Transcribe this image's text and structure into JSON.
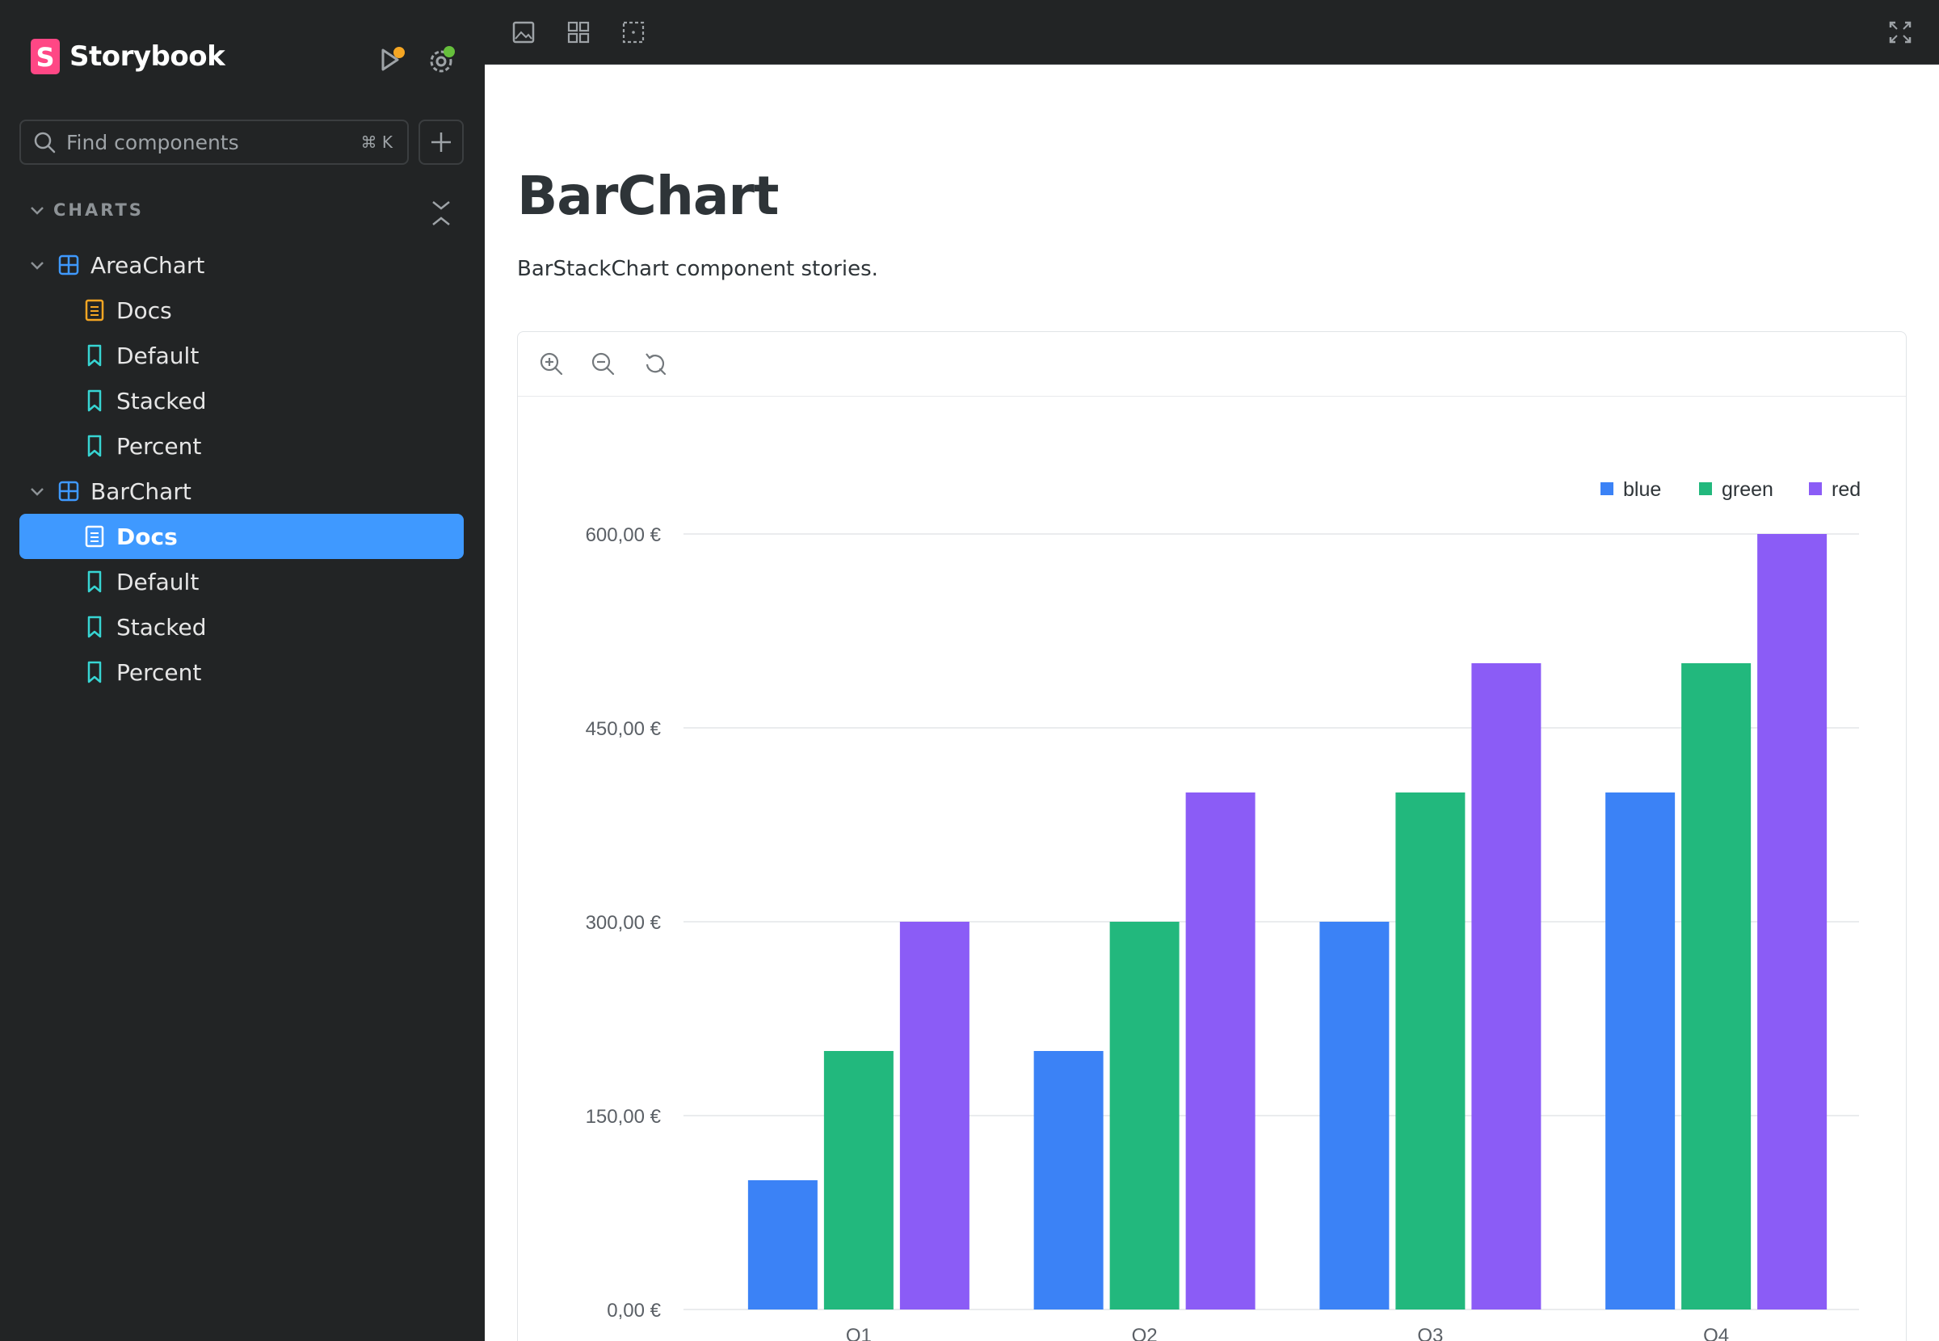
{
  "sidebar": {
    "brand": "Storybook",
    "search": {
      "placeholder": "Find components",
      "shortcut": "⌘ K"
    },
    "group_label": "CHARTS",
    "items": [
      {
        "label": "AreaChart",
        "kind": "component",
        "expanded": true
      },
      {
        "label": "Docs",
        "kind": "docs",
        "parent": "AreaChart"
      },
      {
        "label": "Default",
        "kind": "story",
        "parent": "AreaChart"
      },
      {
        "label": "Stacked",
        "kind": "story",
        "parent": "AreaChart"
      },
      {
        "label": "Percent",
        "kind": "story",
        "parent": "AreaChart"
      },
      {
        "label": "BarChart",
        "kind": "component",
        "expanded": true
      },
      {
        "label": "Docs",
        "kind": "docs",
        "parent": "BarChart",
        "selected": true
      },
      {
        "label": "Default",
        "kind": "story",
        "parent": "BarChart"
      },
      {
        "label": "Stacked",
        "kind": "story",
        "parent": "BarChart"
      },
      {
        "label": "Percent",
        "kind": "story",
        "parent": "BarChart"
      }
    ]
  },
  "toolbar": {
    "icons": [
      "image-icon",
      "grid-icon",
      "outline-icon",
      "fullscreen-icon"
    ]
  },
  "main": {
    "title": "BarChart",
    "description": "BarStackChart component stories."
  },
  "colors": {
    "sidebar_bg": "#222425",
    "selected": "#3f99ff",
    "docs_icon": "#f5a623",
    "story_icon": "#37d5d3",
    "component_icon": "#3f99ff",
    "blue": "#3b82f6",
    "green": "#22b87d",
    "red": "#8b5cf6"
  },
  "chart_data": {
    "type": "bar",
    "categories": [
      "Q1",
      "Q2",
      "Q3",
      "Q4"
    ],
    "series": [
      {
        "name": "blue",
        "values": [
          100,
          200,
          300,
          400
        ]
      },
      {
        "name": "green",
        "values": [
          200,
          300,
          400,
          500
        ]
      },
      {
        "name": "red",
        "values": [
          300,
          400,
          500,
          600
        ]
      }
    ],
    "yticks": [
      "0,00 €",
      "150,00 €",
      "300,00 €",
      "450,00 €",
      "600,00 €"
    ],
    "ylim": [
      0,
      600
    ],
    "legend": "top-right",
    "grid": true
  }
}
